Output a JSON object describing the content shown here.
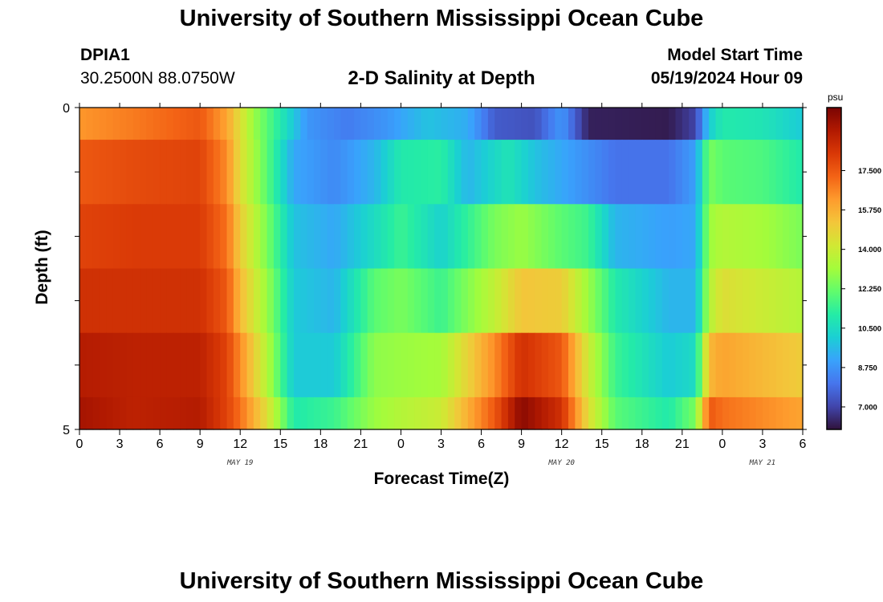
{
  "title": "University of Southern Mississippi Ocean Cube",
  "footer_title": "University of Southern Mississippi Ocean Cube",
  "station": {
    "id": "DPIA1",
    "coords": "30.2500N  88.0750W"
  },
  "model": {
    "start_label": "Model Start Time",
    "start_value": "05/19/2024 Hour 09"
  },
  "colorbar": {
    "unit": "psu",
    "min": 6.0,
    "max": 20.3,
    "ticks": [
      "7.000",
      "8.750",
      "10.500",
      "12.250",
      "14.000",
      "15.750",
      "17.500"
    ],
    "tick_values": [
      7.0,
      8.75,
      10.5,
      12.25,
      14.0,
      15.75,
      17.5
    ],
    "palette": [
      "#30123b",
      "#4145ab",
      "#4675ed",
      "#39a2fc",
      "#1bcfd4",
      "#24eca6",
      "#61fc6c",
      "#a4fc3b",
      "#d1e834",
      "#f3c63a",
      "#fe9b2d",
      "#f36315",
      "#d93806",
      "#b11901",
      "#7a0403"
    ]
  },
  "chart_data": {
    "type": "heatmap",
    "title": "2-D Salinity at Depth",
    "xlabel": "Forecast Time(Z)",
    "ylabel": "Depth (ft)",
    "x_tick_labels": [
      "0",
      "3",
      "6",
      "9",
      "12",
      "15",
      "18",
      "21",
      "0",
      "3",
      "6",
      "9",
      "12",
      "15",
      "18",
      "21",
      "0",
      "3",
      "6"
    ],
    "x_range_hours": [
      0,
      54
    ],
    "date_labels": [
      "MAY 19",
      "MAY 20",
      "MAY 21"
    ],
    "y_tick_labels": [
      "0",
      "5"
    ],
    "depth_range_ft": [
      0,
      5
    ],
    "depth_bin_edges_ft": [
      0,
      0.5,
      1.5,
      2.5,
      3.5,
      4.5,
      5
    ],
    "depth_rows": [
      {
        "depth": "0-0.5",
        "hours": [
          0,
          4,
          9,
          11,
          13,
          15,
          17,
          20,
          23,
          26,
          29,
          31,
          34,
          36,
          38,
          44,
          46,
          47,
          48,
          51,
          54
        ],
        "values": [
          16.3,
          16.8,
          17.5,
          16.0,
          13.0,
          11.0,
          8.8,
          8.2,
          8.8,
          9.8,
          9.3,
          7.5,
          7.3,
          8.8,
          6.3,
          6.2,
          7.0,
          10.0,
          11.0,
          10.8,
          10.0
        ]
      },
      {
        "depth": "1",
        "hours": [
          0,
          4,
          9,
          11,
          12,
          14,
          16,
          19,
          22,
          24,
          27,
          29,
          32,
          34,
          36,
          40,
          44,
          46,
          47,
          48,
          51,
          54
        ],
        "values": [
          17.5,
          17.8,
          18.0,
          16.5,
          14.5,
          12.0,
          9.2,
          8.5,
          9.5,
          11.0,
          11.2,
          9.5,
          10.8,
          9.8,
          9.2,
          8.0,
          8.0,
          9.0,
          12.5,
          12.0,
          11.8,
          11.0
        ]
      },
      {
        "depth": "2",
        "hours": [
          0,
          4,
          9,
          11,
          12,
          14,
          16,
          19,
          22,
          24,
          27,
          31,
          33,
          36,
          38,
          40,
          44,
          46,
          47,
          48,
          51,
          54
        ],
        "values": [
          18.0,
          18.2,
          18.2,
          17.0,
          15.0,
          12.5,
          9.8,
          9.2,
          10.5,
          11.5,
          10.2,
          12.5,
          13.0,
          12.0,
          11.5,
          9.5,
          9.0,
          9.2,
          13.0,
          13.5,
          13.2,
          12.5
        ]
      },
      {
        "depth": "3",
        "hours": [
          0,
          4,
          9,
          11,
          12,
          14,
          16,
          19,
          22,
          24,
          27,
          31,
          33,
          36,
          38,
          40,
          44,
          46,
          47,
          48,
          51,
          54
        ],
        "values": [
          18.5,
          18.5,
          18.5,
          17.5,
          15.5,
          13.0,
          10.0,
          9.5,
          12.0,
          12.5,
          11.5,
          13.8,
          15.2,
          15.0,
          13.0,
          11.0,
          9.5,
          9.5,
          13.5,
          14.5,
          14.0,
          13.5
        ]
      },
      {
        "depth": "4",
        "hours": [
          0,
          4,
          9,
          11,
          12,
          14,
          16,
          19,
          22,
          24,
          27,
          31,
          33,
          36,
          38,
          40,
          44,
          46,
          47,
          48,
          51,
          54
        ],
        "values": [
          19.2,
          19.0,
          19.0,
          18.0,
          16.5,
          13.5,
          10.0,
          10.0,
          12.8,
          13.0,
          13.2,
          16.5,
          18.5,
          17.5,
          14.0,
          11.5,
          10.0,
          10.5,
          15.5,
          16.0,
          15.5,
          15.0
        ]
      },
      {
        "depth": "5",
        "hours": [
          0,
          4,
          9,
          11,
          12,
          14,
          16,
          19,
          22,
          24,
          27,
          31,
          33,
          36,
          38,
          40,
          44,
          46,
          47,
          48,
          51,
          54
        ],
        "values": [
          19.5,
          19.0,
          19.2,
          18.0,
          17.0,
          14.5,
          11.0,
          11.5,
          13.0,
          13.5,
          14.0,
          17.5,
          20.0,
          18.5,
          14.5,
          12.0,
          11.0,
          12.5,
          17.5,
          17.0,
          16.5,
          16.0
        ]
      }
    ]
  }
}
